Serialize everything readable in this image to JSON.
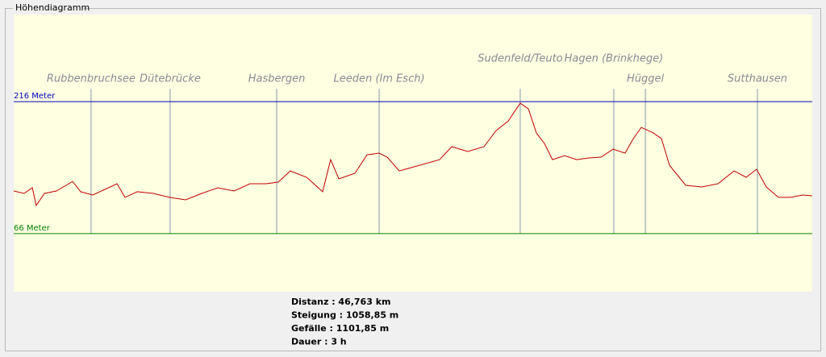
{
  "window": {
    "title": "Höhendiagramm"
  },
  "chart_data": {
    "type": "line",
    "color": "#c00000",
    "xlim": [
      0,
      46.763
    ],
    "ylim": [
      0,
      315
    ],
    "x": [
      0,
      0.61,
      1.09,
      1.32,
      1.8,
      2.5,
      3.45,
      3.92,
      4.63,
      5.34,
      6.05,
      6.52,
      7.23,
      8.17,
      9.12,
      10.06,
      11.01,
      11.95,
      12.9,
      13.84,
      14.78,
      15.49,
      16.2,
      17.15,
      18.09,
      18.56,
      19.04,
      19.98,
      20.69,
      21.4,
      21.87,
      22.58,
      23.76,
      24.94,
      25.65,
      26.59,
      27.54,
      28.25,
      28.96,
      29.66,
      30.14,
      30.61,
      31.08,
      31.55,
      32.26,
      32.97,
      33.68,
      34.39,
      35.1,
      35.8,
      36.28,
      36.75,
      37.46,
      37.93,
      38.4,
      39.35,
      40.29,
      41.24,
      42.18,
      42.89,
      43.5,
      44.07,
      44.78,
      45.49,
      46.2,
      46.76
    ],
    "values": [
      114.5,
      111.7,
      118.1,
      98.0,
      111.7,
      114.5,
      125.4,
      113.6,
      109.9,
      116.3,
      122.7,
      107.2,
      113.6,
      111.7,
      107.2,
      104.4,
      111.7,
      118.1,
      114.5,
      122.7,
      122.7,
      124.5,
      137.3,
      130.0,
      113.6,
      150.1,
      128.2,
      134.6,
      155.6,
      157.5,
      152.9,
      137.3,
      143.7,
      150.1,
      164.8,
      159.3,
      164.8,
      183.1,
      194.0,
      214.2,
      207.8,
      180.3,
      168.4,
      150.1,
      154.7,
      150.1,
      152.0,
      152.9,
      162.0,
      157.5,
      173.9,
      186.7,
      180.3,
      173.9,
      143.7,
      120.9,
      119.0,
      122.7,
      137.3,
      130.0,
      139.2,
      119.0,
      107.2,
      107.2,
      109.9,
      109.0
    ],
    "reference_lines": [
      {
        "value": 216,
        "label": "216 Meter",
        "color": "#0000c0"
      },
      {
        "value": 66,
        "label": "66 Meter",
        "color": "#008000"
      }
    ],
    "markers": [
      {
        "name": "Rubbenbruchsee",
        "x": 4.53
      },
      {
        "name": "Dütebrücke",
        "x": 9.16
      },
      {
        "name": "Hasbergen",
        "x": 15.4
      },
      {
        "name": "Leeden (Im Esch)",
        "x": 21.4
      },
      {
        "name": "Sudenfeld/Teuto",
        "x": 29.66
      },
      {
        "name": "Hagen (Brinkhege)",
        "x": 35.14
      },
      {
        "name": "Hüggel",
        "x": 36.99
      },
      {
        "name": "Sutthausen",
        "x": 43.55
      }
    ]
  },
  "stats": [
    "Distanz : 46,763 km",
    "Steigung : 1058,85 m",
    "Gefälle : 1101,85 m",
    "Dauer : 3 h"
  ]
}
